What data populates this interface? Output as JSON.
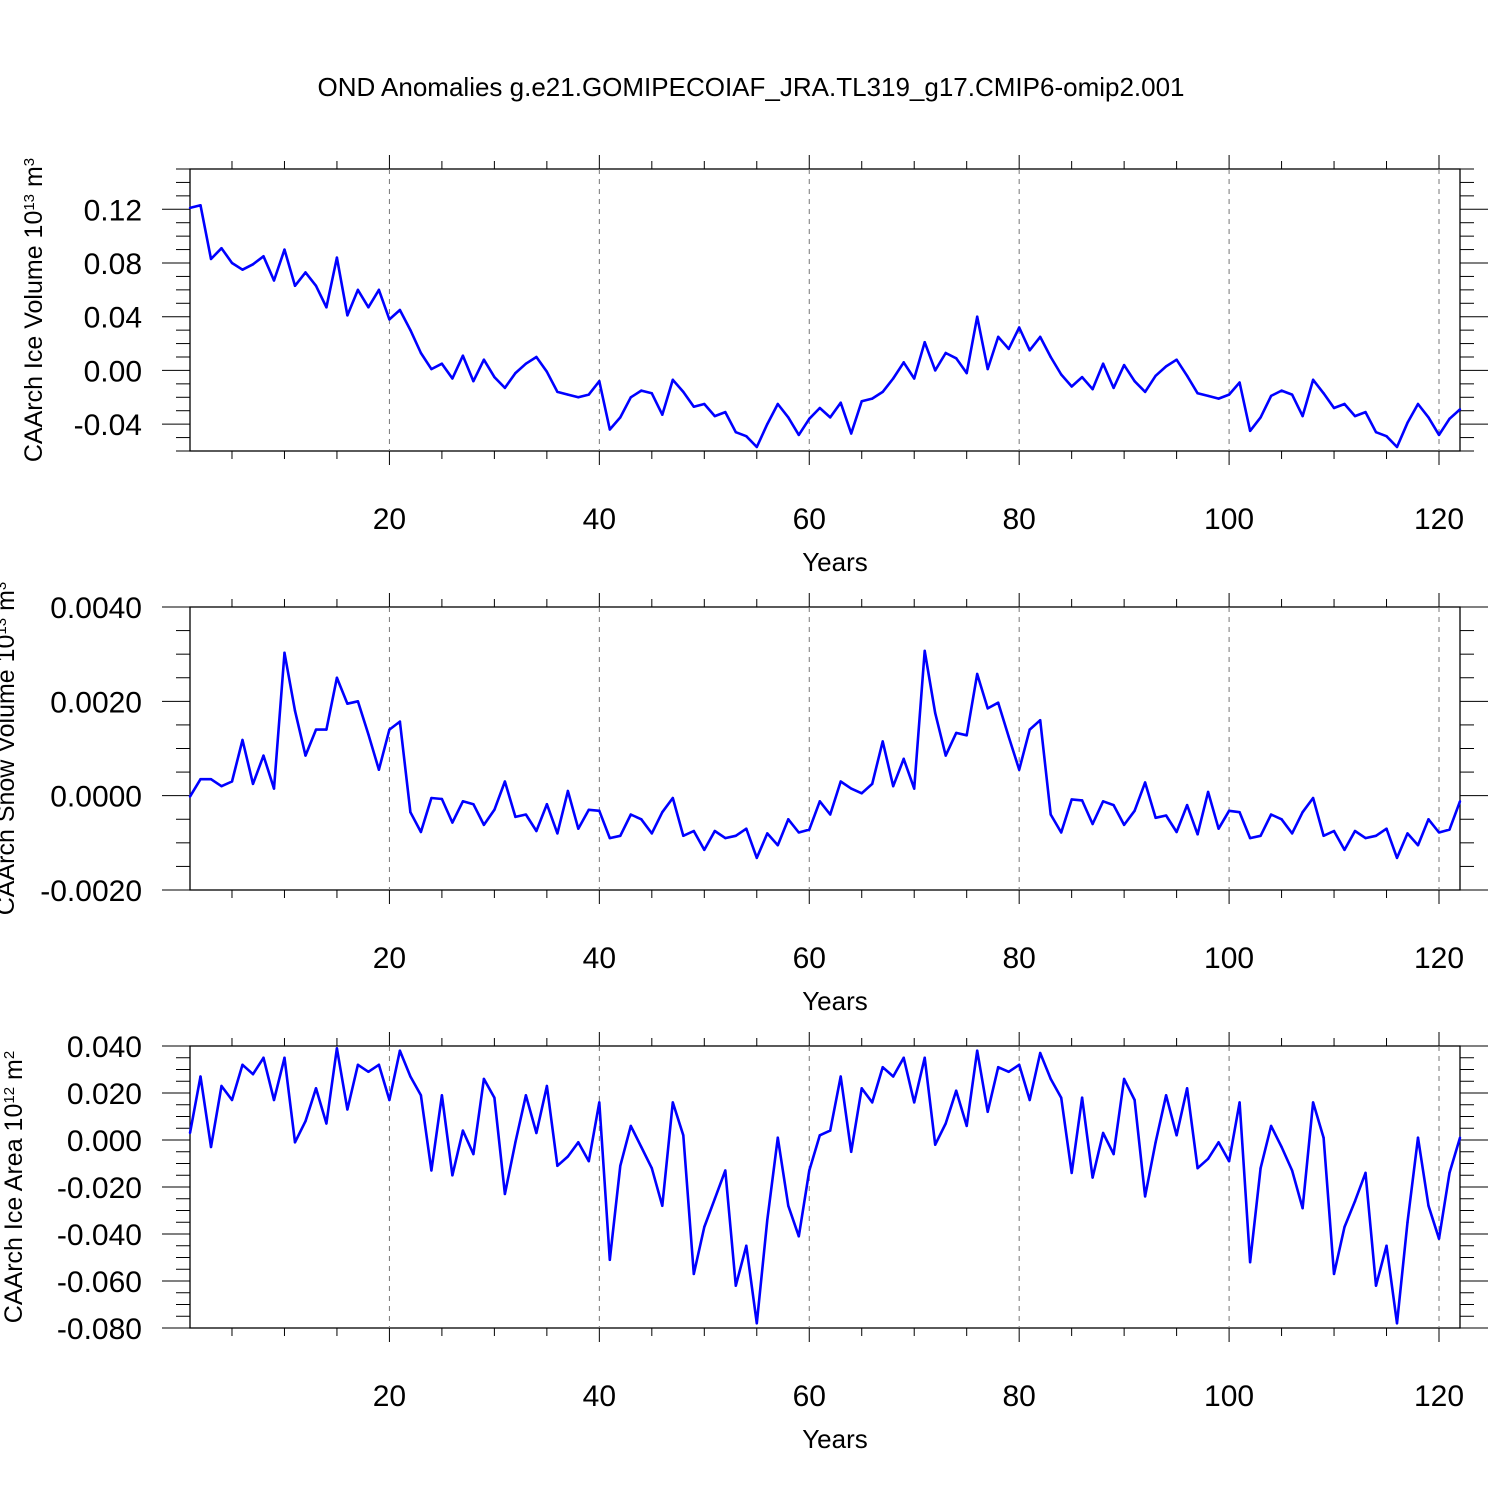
{
  "title": "OND Anomalies g.e21.GOMIPECOIAF_JRA.TL319_g17.CMIP6-omip2.001",
  "chart_data": [
    {
      "type": "line",
      "ylabel": {
        "text": "CAArch Ice Volume 10",
        "exp": "13",
        "unit": " m",
        "unit_exp": "3"
      },
      "xlabel": "Years",
      "xlim": [
        1,
        122
      ],
      "ylim": [
        -0.06,
        0.15
      ],
      "xticks": [
        20,
        40,
        60,
        80,
        100,
        120
      ],
      "xtick_labels": [
        "20",
        "40",
        "60",
        "80",
        "100",
        "120"
      ],
      "yticks": [
        -0.04,
        0.0,
        0.04,
        0.08,
        0.12
      ],
      "ytick_labels": [
        "-0.04",
        "0.00",
        "0.04",
        "0.08",
        "0.12"
      ],
      "gridlines_x": [
        20,
        40,
        60,
        80,
        100,
        120
      ],
      "color": "#0000ff",
      "x": [
        1,
        2,
        3,
        4,
        5,
        6,
        7,
        8,
        9,
        10,
        11,
        12,
        13,
        14,
        15,
        16,
        17,
        18,
        19,
        20,
        21,
        22,
        23,
        24,
        25,
        26,
        27,
        28,
        29,
        30,
        31,
        32,
        33,
        34,
        35,
        36,
        37,
        38,
        39,
        40,
        41,
        42,
        43,
        44,
        45,
        46,
        47,
        48,
        49,
        50,
        51,
        52,
        53,
        54,
        55,
        56,
        57,
        58,
        59,
        60,
        61,
        62,
        63,
        64,
        65,
        66,
        67,
        68,
        69,
        70,
        71,
        72,
        73,
        74,
        75,
        76,
        77,
        78,
        79,
        80,
        81,
        82,
        83,
        84,
        85,
        86,
        87,
        88,
        89,
        90,
        91,
        92,
        93,
        94,
        95,
        96,
        97,
        98,
        99,
        100,
        101,
        102,
        103,
        104,
        105,
        106,
        107,
        108,
        109,
        110,
        111,
        112,
        113,
        114,
        115,
        116,
        117,
        118,
        119,
        120,
        121,
        122
      ],
      "values": [
        0.121,
        0.123,
        0.083,
        0.091,
        0.08,
        0.075,
        0.079,
        0.085,
        0.067,
        0.09,
        0.063,
        0.073,
        0.063,
        0.047,
        0.084,
        0.041,
        0.06,
        0.047,
        0.06,
        0.038,
        0.045,
        0.03,
        0.013,
        0.001,
        0.005,
        -0.006,
        0.011,
        -0.008,
        0.008,
        -0.005,
        -0.013,
        -0.002,
        0.005,
        0.01,
        -0.001,
        -0.016,
        -0.018,
        -0.02,
        -0.018,
        -0.008,
        -0.044,
        -0.035,
        -0.02,
        -0.015,
        -0.017,
        -0.033,
        -0.007,
        -0.016,
        -0.027,
        -0.025,
        -0.034,
        -0.031,
        -0.046,
        -0.049,
        -0.057,
        -0.04,
        -0.025,
        -0.035,
        -0.048,
        -0.036,
        -0.028,
        -0.035,
        -0.024,
        -0.047,
        -0.023,
        -0.021,
        -0.016,
        -0.006,
        0.006,
        -0.006,
        0.021,
        0.0,
        0.013,
        0.009,
        -0.002,
        0.04,
        0.001,
        0.025,
        0.016,
        0.032,
        0.015,
        0.025,
        0.01,
        -0.003,
        -0.012,
        -0.005,
        -0.014,
        0.005,
        -0.013,
        0.004,
        -0.008,
        -0.016,
        -0.004,
        0.003,
        0.008,
        -0.004,
        -0.017,
        -0.019,
        -0.021,
        -0.018,
        -0.009,
        -0.045,
        -0.035,
        -0.019,
        -0.015,
        -0.018,
        -0.034,
        -0.007,
        -0.017,
        -0.028,
        -0.025,
        -0.034,
        -0.031,
        -0.046,
        -0.049,
        -0.057,
        -0.039,
        -0.025,
        -0.035,
        -0.048,
        -0.036,
        -0.029
      ]
    },
    {
      "type": "line",
      "ylabel": {
        "text": "CAArch Snow Volume 10",
        "exp": "13",
        "unit": " m",
        "unit_exp": "3"
      },
      "xlabel": "Years",
      "xlim": [
        1,
        122
      ],
      "ylim": [
        -0.002,
        0.004
      ],
      "xticks": [
        20,
        40,
        60,
        80,
        100,
        120
      ],
      "xtick_labels": [
        "20",
        "40",
        "60",
        "80",
        "100",
        "120"
      ],
      "yticks": [
        -0.002,
        0.0,
        0.002,
        0.004
      ],
      "ytick_labels": [
        "-0.0020",
        "0.0000",
        "0.0020",
        "0.0040"
      ],
      "gridlines_x": [
        20,
        40,
        60,
        80,
        100,
        120
      ],
      "color": "#0000ff",
      "x": [
        1,
        2,
        3,
        4,
        5,
        6,
        7,
        8,
        9,
        10,
        11,
        12,
        13,
        14,
        15,
        16,
        17,
        18,
        19,
        20,
        21,
        22,
        23,
        24,
        25,
        26,
        27,
        28,
        29,
        30,
        31,
        32,
        33,
        34,
        35,
        36,
        37,
        38,
        39,
        40,
        41,
        42,
        43,
        44,
        45,
        46,
        47,
        48,
        49,
        50,
        51,
        52,
        53,
        54,
        55,
        56,
        57,
        58,
        59,
        60,
        61,
        62,
        63,
        64,
        65,
        66,
        67,
        68,
        69,
        70,
        71,
        72,
        73,
        74,
        75,
        76,
        77,
        78,
        79,
        80,
        81,
        82,
        83,
        84,
        85,
        86,
        87,
        88,
        89,
        90,
        91,
        92,
        93,
        94,
        95,
        96,
        97,
        98,
        99,
        100,
        101,
        102,
        103,
        104,
        105,
        106,
        107,
        108,
        109,
        110,
        111,
        112,
        113,
        114,
        115,
        116,
        117,
        118,
        119,
        120,
        121,
        122
      ],
      "values": [
        -2e-05,
        0.00035,
        0.00035,
        0.0002,
        0.0003,
        0.00118,
        0.00025,
        0.00085,
        0.00015,
        0.00303,
        0.0018,
        0.00085,
        0.0014,
        0.0014,
        0.0025,
        0.00195,
        0.002,
        0.0013,
        0.00055,
        0.0014,
        0.00157,
        -0.00035,
        -0.00077,
        -5e-05,
        -7e-05,
        -0.00057,
        -0.00012,
        -0.00018,
        -0.00062,
        -0.0003,
        0.0003,
        -0.00045,
        -0.0004,
        -0.00075,
        -0.00018,
        -0.0008,
        0.0001,
        -0.0007,
        -0.0003,
        -0.00032,
        -0.0009,
        -0.00085,
        -0.0004,
        -0.0005,
        -0.0008,
        -0.00035,
        -5e-05,
        -0.00085,
        -0.00075,
        -0.00115,
        -0.00075,
        -0.0009,
        -0.00085,
        -0.0007,
        -0.00132,
        -0.0008,
        -0.00105,
        -0.0005,
        -0.00078,
        -0.00072,
        -0.00012,
        -0.0004,
        0.0003,
        0.00015,
        5e-05,
        0.00025,
        0.00115,
        0.0002,
        0.00078,
        0.00015,
        0.00307,
        0.00175,
        0.00085,
        0.00133,
        0.00128,
        0.00258,
        0.00185,
        0.00197,
        0.00125,
        0.00055,
        0.0014,
        0.0016,
        -0.0004,
        -0.00078,
        -8e-05,
        -0.0001,
        -0.0006,
        -0.00012,
        -0.0002,
        -0.00062,
        -0.00032,
        0.00028,
        -0.00047,
        -0.00042,
        -0.00077,
        -0.0002,
        -0.00082,
        8e-05,
        -0.0007,
        -0.00032,
        -0.00035,
        -0.0009,
        -0.00085,
        -0.0004,
        -0.0005,
        -0.0008,
        -0.00035,
        -5e-05,
        -0.00085,
        -0.00075,
        -0.00115,
        -0.00075,
        -0.0009,
        -0.00085,
        -0.0007,
        -0.00132,
        -0.0008,
        -0.00105,
        -0.0005,
        -0.00078,
        -0.00072,
        -0.00012
      ]
    },
    {
      "type": "line",
      "ylabel": {
        "text": "CAArch Ice Area 10",
        "exp": "12",
        "unit": " m",
        "unit_exp": "2"
      },
      "xlabel": "Years",
      "xlim": [
        1,
        122
      ],
      "ylim": [
        -0.08,
        0.04
      ],
      "xticks": [
        20,
        40,
        60,
        80,
        100,
        120
      ],
      "xtick_labels": [
        "20",
        "40",
        "60",
        "80",
        "100",
        "120"
      ],
      "yticks": [
        -0.08,
        -0.06,
        -0.04,
        -0.02,
        0.0,
        0.02,
        0.04
      ],
      "ytick_labels": [
        "-0.080",
        "-0.060",
        "-0.040",
        "-0.020",
        "0.000",
        "0.020",
        "0.040"
      ],
      "gridlines_x": [
        20,
        40,
        60,
        80,
        100,
        120
      ],
      "color": "#0000ff",
      "x": [
        1,
        2,
        3,
        4,
        5,
        6,
        7,
        8,
        9,
        10,
        11,
        12,
        13,
        14,
        15,
        16,
        17,
        18,
        19,
        20,
        21,
        22,
        23,
        24,
        25,
        26,
        27,
        28,
        29,
        30,
        31,
        32,
        33,
        34,
        35,
        36,
        37,
        38,
        39,
        40,
        41,
        42,
        43,
        44,
        45,
        46,
        47,
        48,
        49,
        50,
        51,
        52,
        53,
        54,
        55,
        56,
        57,
        58,
        59,
        60,
        61,
        62,
        63,
        64,
        65,
        66,
        67,
        68,
        69,
        70,
        71,
        72,
        73,
        74,
        75,
        76,
        77,
        78,
        79,
        80,
        81,
        82,
        83,
        84,
        85,
        86,
        87,
        88,
        89,
        90,
        91,
        92,
        93,
        94,
        95,
        96,
        97,
        98,
        99,
        100,
        101,
        102,
        103,
        104,
        105,
        106,
        107,
        108,
        109,
        110,
        111,
        112,
        113,
        114,
        115,
        116,
        117,
        118,
        119,
        120,
        121,
        122
      ],
      "values": [
        0.003,
        0.027,
        -0.003,
        0.023,
        0.017,
        0.032,
        0.028,
        0.035,
        0.017,
        0.035,
        -0.001,
        0.008,
        0.022,
        0.007,
        0.039,
        0.013,
        0.032,
        0.029,
        0.032,
        0.017,
        0.038,
        0.027,
        0.019,
        -0.013,
        0.019,
        -0.015,
        0.004,
        -0.006,
        0.026,
        0.018,
        -0.023,
        -0.001,
        0.019,
        0.003,
        0.023,
        -0.011,
        -0.007,
        -0.001,
        -0.009,
        0.016,
        -0.051,
        -0.011,
        0.006,
        -0.003,
        -0.012,
        -0.028,
        0.016,
        0.002,
        -0.057,
        -0.037,
        -0.025,
        -0.013,
        -0.062,
        -0.045,
        -0.078,
        -0.034,
        0.001,
        -0.028,
        -0.041,
        -0.013,
        0.002,
        0.004,
        0.027,
        -0.005,
        0.022,
        0.016,
        0.031,
        0.027,
        0.035,
        0.016,
        0.035,
        -0.002,
        0.007,
        0.021,
        0.006,
        0.038,
        0.012,
        0.031,
        0.029,
        0.032,
        0.017,
        0.037,
        0.026,
        0.018,
        -0.014,
        0.018,
        -0.016,
        0.003,
        -0.006,
        0.026,
        0.017,
        -0.024,
        -0.001,
        0.019,
        0.002,
        0.022,
        -0.012,
        -0.008,
        -0.001,
        -0.009,
        0.016,
        -0.052,
        -0.012,
        0.006,
        -0.003,
        -0.013,
        -0.029,
        0.016,
        0.001,
        -0.057,
        -0.037,
        -0.026,
        -0.014,
        -0.062,
        -0.045,
        -0.078,
        -0.035,
        0.001,
        -0.028,
        -0.042,
        -0.014,
        0.001
      ]
    }
  ]
}
